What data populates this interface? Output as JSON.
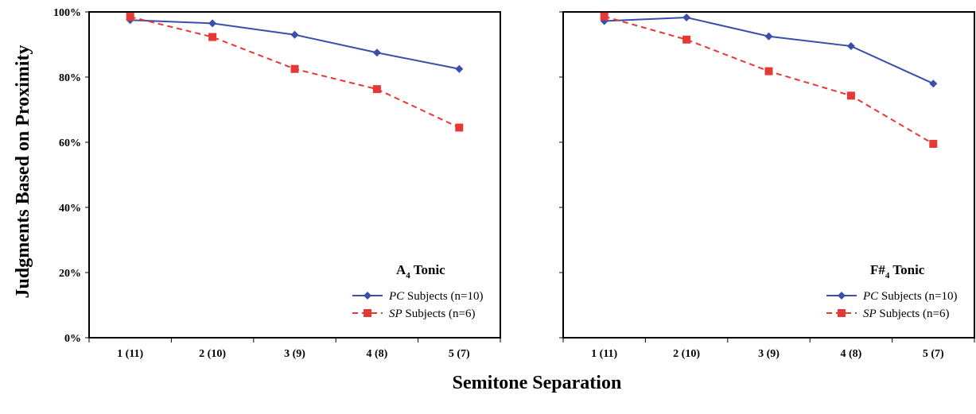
{
  "chart_data": [
    {
      "type": "line",
      "panel_title": {
        "main": "A",
        "sub": "4",
        "rest": " Tonic"
      },
      "categories": [
        "1 (11)",
        "2 (10)",
        "3 (9)",
        "4 (8)",
        "5 (7)"
      ],
      "series": [
        {
          "name_italic": "PC",
          "name_rest": " Subjects (n=10)",
          "color": "#3a4fa8",
          "marker": "diamond",
          "dash": "solid",
          "values": [
            97.5,
            96.5,
            93.0,
            87.5,
            82.5
          ]
        },
        {
          "name_italic": "SP",
          "name_rest": " Subjects (n=6)",
          "color": "#e53935",
          "marker": "square",
          "dash": "dashed",
          "values": [
            98.5,
            92.3,
            82.5,
            76.3,
            64.5
          ]
        }
      ],
      "ylim": [
        0,
        100
      ],
      "yticks": [
        "0%",
        "20%",
        "40%",
        "60%",
        "80%",
        "100%"
      ],
      "legend": "bottom-right"
    },
    {
      "type": "line",
      "panel_title": {
        "main": "F#",
        "sub": "4",
        "rest": " Tonic"
      },
      "categories": [
        "1 (11)",
        "2 (10)",
        "3 (9)",
        "4 (8)",
        "5 (7)"
      ],
      "series": [
        {
          "name_italic": "PC",
          "name_rest": " Subjects (n=10)",
          "color": "#3a4fa8",
          "marker": "diamond",
          "dash": "solid",
          "values": [
            97.2,
            98.3,
            92.5,
            89.5,
            78.0
          ]
        },
        {
          "name_italic": "SP",
          "name_rest": " Subjects (n=6)",
          "color": "#e53935",
          "marker": "square",
          "dash": "dashed",
          "values": [
            98.6,
            91.5,
            81.8,
            74.3,
            59.5
          ]
        }
      ],
      "ylim": [
        0,
        100
      ],
      "legend": "bottom-right"
    }
  ],
  "ylabel": "Judgments Based on Proximity",
  "xlabel": "Semitone Separation"
}
